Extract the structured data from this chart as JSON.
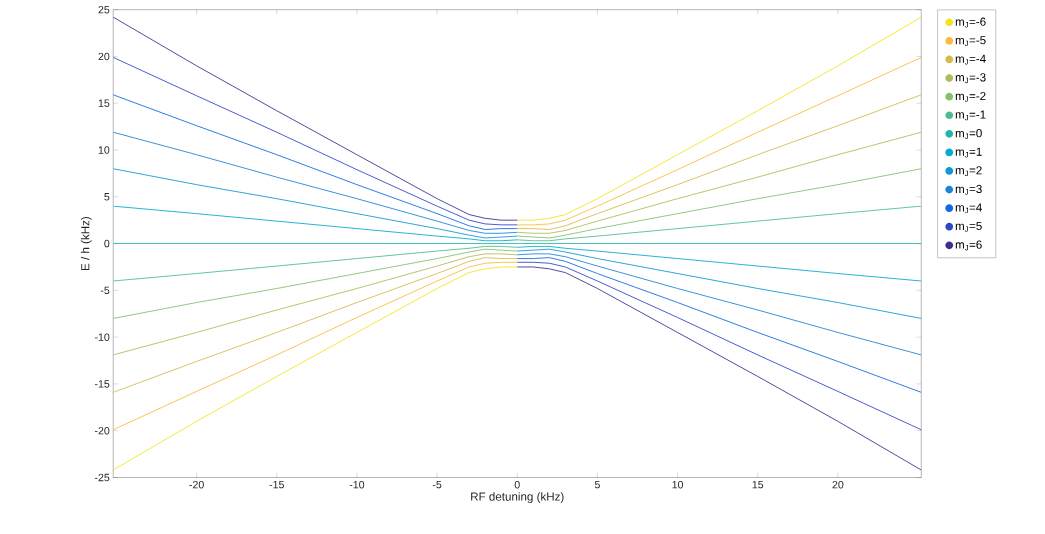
{
  "chart_data": {
    "type": "line",
    "xlabel": "RF detuning (kHz)",
    "ylabel": "E / h (kHz)",
    "x": [
      -25.2,
      -20,
      -15,
      -10,
      -5,
      -3,
      -2,
      -1,
      0,
      0,
      1,
      2,
      3,
      5,
      10,
      15,
      20,
      25.2
    ],
    "xlim": [
      -25.2,
      25.2
    ],
    "ylim": [
      -25,
      25
    ],
    "xticks": [
      -20,
      -15,
      -10,
      -5,
      0,
      5,
      10,
      15,
      20
    ],
    "yticks": [
      -25,
      -20,
      -15,
      -10,
      -5,
      0,
      5,
      10,
      15,
      20,
      25
    ],
    "grid": false,
    "legend": "right",
    "line_style": "solid",
    "series": [
      {
        "name": "m$_{J}$=-6",
        "color": "#f2e41c",
        "values": [
          -24.2,
          -19,
          -14.2,
          -9.5,
          -4.8,
          -3.1,
          -2.7,
          -2.5,
          -2.5,
          2.5,
          2.5,
          2.7,
          3.1,
          4.8,
          9.5,
          14.2,
          19,
          24.2
        ]
      },
      {
        "name": "m$_{J}$=-5",
        "color": "#fbbb3b",
        "values": [
          -19.9,
          -15.8,
          -11.9,
          -7.9,
          -4,
          -2.5,
          -2.1,
          -2,
          -2,
          2,
          2,
          2.1,
          2.5,
          4,
          7.9,
          11.9,
          15.8,
          19.9
        ]
      },
      {
        "name": "m$_{J}$=-4",
        "color": "#d5ba4c",
        "values": [
          -15.9,
          -12.6,
          -9.5,
          -6.3,
          -3.2,
          -1.9,
          -1.5,
          -1.6,
          -1.6,
          1.6,
          1.6,
          1.5,
          1.9,
          3.2,
          6.3,
          9.5,
          12.6,
          15.9
        ]
      },
      {
        "name": "m$_{J}$=-3",
        "color": "#aebc5a",
        "values": [
          -11.9,
          -9.5,
          -7.1,
          -4.8,
          -2.4,
          -1.4,
          -1.1,
          -1.1,
          -1.2,
          1.2,
          1.1,
          1.1,
          1.4,
          2.4,
          4.8,
          7.1,
          9.5,
          11.9
        ]
      },
      {
        "name": "m$_{J}$=-2",
        "color": "#85c06c",
        "values": [
          -8,
          -6.3,
          -4.8,
          -3.2,
          -1.6,
          -0.9,
          -0.6,
          -0.7,
          -0.8,
          0.8,
          0.7,
          0.6,
          0.9,
          1.6,
          3.2,
          4.8,
          6.3,
          8
        ]
      },
      {
        "name": "m$_{J}$=-1",
        "color": "#4dbd8f",
        "values": [
          -4,
          -3.2,
          -2.4,
          -1.6,
          -0.8,
          -0.5,
          -0.3,
          -0.3,
          -0.4,
          0.4,
          0.3,
          0.3,
          0.5,
          0.8,
          1.6,
          2.4,
          3.2,
          4
        ]
      },
      {
        "name": "m$_{J}$=0",
        "color": "#1fb5a8",
        "values": [
          0,
          0,
          0,
          0,
          0,
          0,
          0,
          0,
          0,
          0,
          0,
          0,
          0,
          0,
          0,
          0,
          0,
          0
        ]
      },
      {
        "name": "m$_{J}$=1",
        "color": "#06aacc",
        "values": [
          4,
          3.2,
          2.4,
          1.6,
          0.8,
          0.5,
          0.3,
          0.3,
          0.4,
          -0.4,
          -0.3,
          -0.3,
          -0.5,
          -0.8,
          -1.6,
          -2.4,
          -3.2,
          -4
        ]
      },
      {
        "name": "m$_{J}$=2",
        "color": "#0e98d6",
        "values": [
          8,
          6.3,
          4.8,
          3.2,
          1.6,
          0.9,
          0.6,
          0.7,
          0.8,
          -0.8,
          -0.7,
          -0.6,
          -0.9,
          -1.6,
          -3.2,
          -4.8,
          -6.3,
          -8
        ]
      },
      {
        "name": "m$_{J}$=3",
        "color": "#1d83d8",
        "values": [
          11.9,
          9.5,
          7.1,
          4.8,
          2.4,
          1.4,
          1.1,
          1.1,
          1.2,
          -1.2,
          -1.1,
          -1.1,
          -1.4,
          -2.4,
          -4.8,
          -7.1,
          -9.5,
          -11.9
        ]
      },
      {
        "name": "m$_{J}$=4",
        "color": "#0f6ae0",
        "values": [
          15.9,
          12.6,
          9.5,
          6.3,
          3.2,
          1.9,
          1.5,
          1.6,
          1.6,
          -1.6,
          -1.6,
          -1.5,
          -1.9,
          -3.2,
          -6.3,
          -9.5,
          -12.6,
          -15.9
        ]
      },
      {
        "name": "m$_{J}$=5",
        "color": "#2f44c8",
        "values": [
          19.9,
          15.8,
          11.9,
          7.9,
          4,
          2.5,
          2.1,
          2,
          2,
          -2,
          -2,
          -2.1,
          -2.5,
          -4,
          -7.9,
          -11.9,
          -15.8,
          -19.9
        ]
      },
      {
        "name": "m$_{J}$=6",
        "color": "#3a2f8f",
        "values": [
          24.2,
          19,
          14.2,
          9.5,
          4.8,
          3.1,
          2.7,
          2.5,
          2.5,
          -2.5,
          -2.5,
          -2.7,
          -3.1,
          -4.8,
          -9.5,
          -14.2,
          -19,
          -24.2
        ]
      }
    ]
  }
}
